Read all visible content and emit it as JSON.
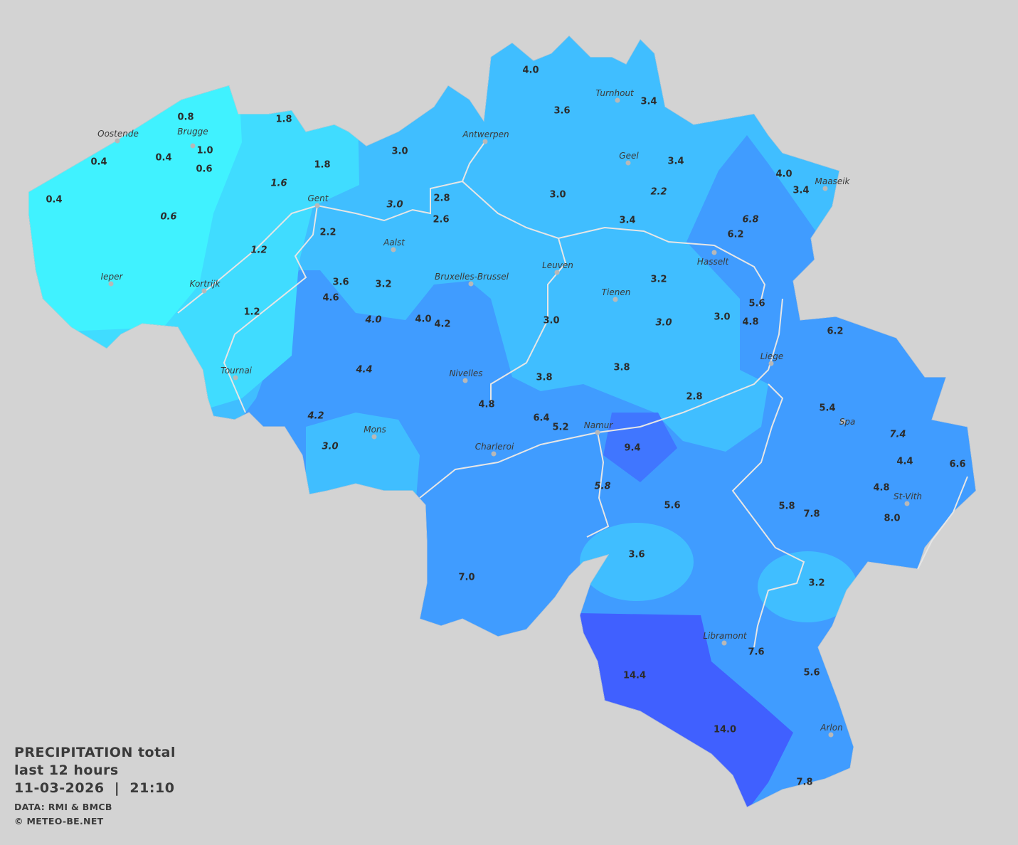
{
  "legend": {
    "title": "PRECIPITATION total",
    "period": "last 12 hours",
    "datetime": "11-03-2026  |  21:10",
    "source": "DATA: RMI & BMCB",
    "copyright": "© METEO-BE.NET"
  },
  "colors": {
    "background": "#d3d3d3",
    "lowest": "#40f2ff",
    "low": "#40dcff",
    "mid": "#40beff",
    "high": "#409cff",
    "higher": "#4076ff",
    "highest": "#4060ff",
    "rivers": "#e6e6e6"
  },
  "cities": [
    "Oostende",
    "Brugge",
    "Ieper",
    "Kortrijk",
    "Gent",
    "Tournai",
    "Antwerpen",
    "Turnhout",
    "Geel",
    "Maaseik",
    "Aalst",
    "Bruxelles-Brussel",
    "Leuven",
    "Tienen",
    "Hasselt",
    "Nivelles",
    "Liege",
    "Mons",
    "Charleroi",
    "Namur",
    "Spa",
    "St-Vith",
    "Libramont",
    "Arlon"
  ],
  "stations": [
    {
      "v": "0.8"
    },
    {
      "v": "1.0"
    },
    {
      "v": "0.4"
    },
    {
      "v": "0.4"
    },
    {
      "v": "0.6"
    },
    {
      "v": "0.4"
    },
    {
      "v": "0.6",
      "italic": true
    },
    {
      "v": "1.8"
    },
    {
      "v": "1.8"
    },
    {
      "v": "1.6",
      "italic": true
    },
    {
      "v": "1.2",
      "italic": true
    },
    {
      "v": "2.2"
    },
    {
      "v": "1.2"
    },
    {
      "v": "3.6"
    },
    {
      "v": "4.6"
    },
    {
      "v": "3.2"
    },
    {
      "v": "4.0",
      "italic": true
    },
    {
      "v": "4.0"
    },
    {
      "v": "4.2"
    },
    {
      "v": "4.4",
      "italic": true
    },
    {
      "v": "4.2",
      "italic": true
    },
    {
      "v": "3.0",
      "italic": true
    },
    {
      "v": "3.0"
    },
    {
      "v": "3.0",
      "italic": true
    },
    {
      "v": "2.8"
    },
    {
      "v": "2.6"
    },
    {
      "v": "4.0"
    },
    {
      "v": "3.6"
    },
    {
      "v": "3.4"
    },
    {
      "v": "3.4"
    },
    {
      "v": "3.0"
    },
    {
      "v": "2.2",
      "italic": true
    },
    {
      "v": "3.4"
    },
    {
      "v": "4.0"
    },
    {
      "v": "3.4"
    },
    {
      "v": "6.8",
      "italic": true
    },
    {
      "v": "6.2"
    },
    {
      "v": "3.2"
    },
    {
      "v": "3.0"
    },
    {
      "v": "3.0",
      "italic": true
    },
    {
      "v": "3.0"
    },
    {
      "v": "5.6"
    },
    {
      "v": "4.8"
    },
    {
      "v": "6.2"
    },
    {
      "v": "3.8"
    },
    {
      "v": "3.8"
    },
    {
      "v": "4.8"
    },
    {
      "v": "2.8"
    },
    {
      "v": "6.4"
    },
    {
      "v": "5.2"
    },
    {
      "v": "9.4"
    },
    {
      "v": "5.4"
    },
    {
      "v": "7.4",
      "italic": true
    },
    {
      "v": "4.4"
    },
    {
      "v": "6.6"
    },
    {
      "v": "5.8",
      "italic": true
    },
    {
      "v": "5.6"
    },
    {
      "v": "4.8"
    },
    {
      "v": "5.8"
    },
    {
      "v": "7.8"
    },
    {
      "v": "8.0"
    },
    {
      "v": "3.6"
    },
    {
      "v": "7.0"
    },
    {
      "v": "3.2"
    },
    {
      "v": "7.6"
    },
    {
      "v": "14.4"
    },
    {
      "v": "5.6"
    },
    {
      "v": "14.0"
    },
    {
      "v": "7.8"
    }
  ]
}
